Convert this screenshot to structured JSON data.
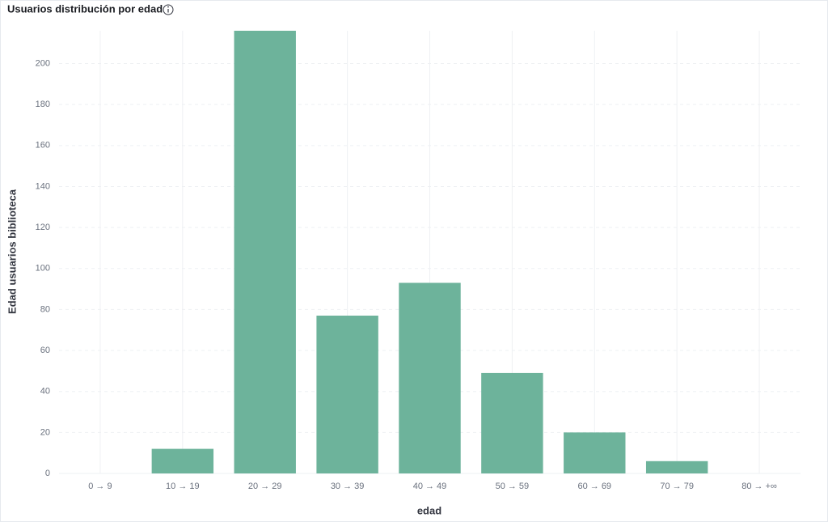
{
  "chart_data": {
    "type": "bar",
    "title": "Usuarios distribución por edad",
    "x_label": "edad",
    "y_label": "Edad usuarios biblioteca",
    "categories": [
      "0 → 9",
      "10 → 19",
      "20 → 29",
      "30 → 39",
      "40 → 49",
      "50 → 59",
      "60 → 69",
      "70 → 79",
      "80 → +∞"
    ],
    "values": [
      0,
      12,
      216,
      77,
      93,
      49,
      20,
      6,
      0
    ],
    "color": "#6db39b",
    "ylim": [
      0,
      216
    ],
    "yticks": [
      0,
      20,
      40,
      60,
      80,
      100,
      120,
      140,
      160,
      180,
      200
    ],
    "grid": true
  }
}
